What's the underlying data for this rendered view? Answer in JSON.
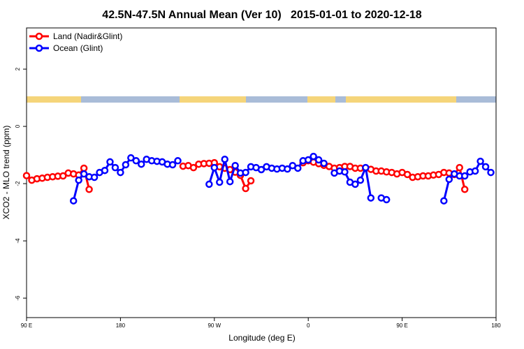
{
  "chart_data": {
    "type": "line",
    "title": "42.5N-47.5N Annual Mean (Ver 10)   2015-01-01 to 2020-12-18",
    "xlabel": "Longitude (deg E)",
    "ylabel": "XCO2 - MLO trend (ppm)",
    "x": [
      90,
      95,
      100,
      105,
      110,
      115,
      120,
      125,
      130,
      135,
      140,
      145,
      150,
      155,
      160,
      165,
      170,
      175,
      180,
      185,
      190,
      195,
      200,
      205,
      210,
      215,
      220,
      225,
      230,
      235,
      240,
      245,
      250,
      255,
      260,
      265,
      270,
      275,
      280,
      285,
      290,
      295,
      300,
      305,
      310,
      315,
      320,
      325,
      330,
      335,
      340,
      345,
      350,
      355,
      360,
      365,
      370,
      375,
      380,
      385,
      390,
      395,
      400,
      405,
      410,
      415,
      420,
      425,
      430,
      435,
      440,
      445,
      450,
      455,
      460,
      465,
      470,
      475,
      480,
      485,
      490,
      495,
      500,
      505,
      510,
      515,
      520,
      525,
      530,
      535,
      540
    ],
    "series": [
      {
        "name": "Land (Nadir&Glint)",
        "color": "#ff0000",
        "values": [
          -1.72,
          -1.88,
          -1.83,
          -1.81,
          -1.78,
          -1.76,
          -1.74,
          -1.73,
          -1.63,
          -1.66,
          -1.7,
          -1.46,
          -2.2,
          null,
          null,
          null,
          null,
          null,
          null,
          null,
          null,
          null,
          null,
          null,
          null,
          null,
          null,
          null,
          null,
          null,
          -1.39,
          -1.37,
          -1.44,
          -1.32,
          -1.3,
          -1.29,
          -1.27,
          -1.41,
          -1.46,
          -1.51,
          -1.6,
          -1.71,
          -2.17,
          -1.9,
          null,
          null,
          null,
          null,
          null,
          null,
          null,
          null,
          null,
          -1.27,
          -1.2,
          -1.25,
          -1.3,
          -1.36,
          -1.4,
          -1.46,
          -1.44,
          -1.4,
          -1.4,
          -1.46,
          -1.46,
          -1.46,
          -1.5,
          -1.56,
          -1.56,
          -1.59,
          -1.61,
          -1.66,
          -1.61,
          -1.68,
          -1.78,
          -1.76,
          -1.73,
          -1.73,
          -1.7,
          -1.68,
          -1.61,
          -1.63,
          -1.68,
          -1.44,
          -2.2,
          null,
          null,
          null,
          null,
          null,
          null
        ]
      },
      {
        "name": "Ocean (Glint)",
        "color": "#0000ff",
        "values": [
          null,
          null,
          null,
          null,
          null,
          null,
          null,
          null,
          null,
          -2.6,
          -1.88,
          -1.66,
          -1.76,
          -1.78,
          -1.61,
          -1.54,
          -1.24,
          -1.44,
          -1.61,
          -1.34,
          -1.1,
          -1.2,
          -1.32,
          -1.15,
          -1.2,
          -1.22,
          -1.24,
          -1.32,
          -1.34,
          -1.2,
          null,
          null,
          null,
          null,
          null,
          -2.02,
          -1.44,
          -1.95,
          -1.15,
          -1.93,
          -1.37,
          -1.63,
          -1.61,
          -1.41,
          -1.44,
          -1.51,
          -1.41,
          -1.46,
          -1.49,
          -1.46,
          -1.49,
          -1.37,
          -1.46,
          -1.2,
          -1.17,
          -1.05,
          -1.17,
          -1.29,
          null,
          -1.63,
          -1.56,
          -1.59,
          -1.95,
          -2.02,
          -1.88,
          -1.44,
          -2.5,
          null,
          -2.5,
          -2.56,
          null,
          null,
          null,
          null,
          null,
          null,
          null,
          null,
          null,
          null,
          -2.6,
          -1.85,
          -1.66,
          -1.73,
          -1.73,
          -1.59,
          -1.56,
          -1.22,
          -1.41,
          -1.61,
          null
        ]
      }
    ],
    "xlim": [
      90,
      540
    ],
    "xticks": [
      {
        "value": 90,
        "label": "90 E"
      },
      180,
      {
        "value": 270,
        "label": "90 W"
      },
      {
        "value": 360,
        "label": "0"
      },
      {
        "value": 450,
        "label": "90 E"
      },
      {
        "value": 540,
        "label": "180"
      }
    ],
    "ylim": [
      -6.68,
      3.44
    ],
    "yticks": [
      -6,
      -4,
      -2,
      0,
      2
    ],
    "grid": false,
    "legend": "top-left"
  }
}
